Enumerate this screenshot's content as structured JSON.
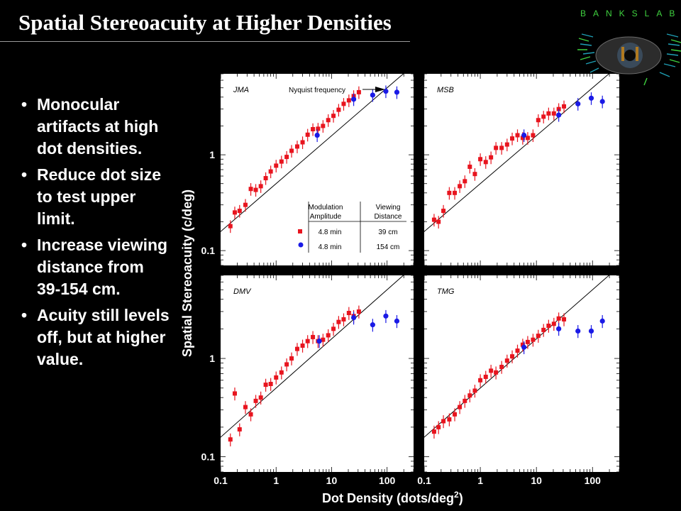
{
  "slide": {
    "title": "Spatial Stereoacuity at Higher Densities",
    "logo_text": "BANKSLAB",
    "bullets": [
      "Monocular artifacts at high dot densities.",
      "Reduce dot size to test upper limit.",
      "Increase viewing distance from 39-154 cm.",
      "Acuity still levels off, but at higher value."
    ]
  },
  "colors": {
    "background": "#000000",
    "panel": "#ffffff",
    "red_series": "#e8141e",
    "blue_series": "#1a1ae6",
    "logo_green": "#3fd23f"
  },
  "chart_data": {
    "type": "scatter",
    "xlabel": "Dot Density (dots/deg²)",
    "ylabel": "Spatial Stereoacuity (c/deg)",
    "x_scale": "log",
    "y_scale": "log",
    "xlim": [
      0.1,
      300
    ],
    "ylim": [
      0.07,
      7
    ],
    "x_ticks": [
      "0.1",
      "1",
      "10",
      "100"
    ],
    "y_ticks": [
      "0.1",
      "1"
    ],
    "reference_line": "Nyquist frequency",
    "legend": {
      "header_amp": "Modulation Amplitude",
      "header_dist": "Viewing Distance",
      "rows": [
        {
          "marker": "square",
          "color": "#e8141e",
          "amplitude": "4.8 min",
          "distance": "39 cm"
        },
        {
          "marker": "circle",
          "color": "#1a1ae6",
          "amplitude": "4.8 min",
          "distance": "154 cm"
        }
      ]
    },
    "panels": [
      {
        "name": "JMA",
        "red": [
          [
            0.15,
            0.18
          ],
          [
            0.18,
            0.25
          ],
          [
            0.22,
            0.26
          ],
          [
            0.28,
            0.3
          ],
          [
            0.35,
            0.44
          ],
          [
            0.43,
            0.43
          ],
          [
            0.53,
            0.47
          ],
          [
            0.65,
            0.57
          ],
          [
            0.8,
            0.67
          ],
          [
            1.0,
            0.77
          ],
          [
            1.25,
            0.85
          ],
          [
            1.55,
            0.95
          ],
          [
            1.9,
            1.1
          ],
          [
            2.4,
            1.22
          ],
          [
            3.0,
            1.35
          ],
          [
            3.7,
            1.62
          ],
          [
            4.6,
            1.85
          ],
          [
            5.7,
            1.87
          ],
          [
            7.0,
            2.0
          ],
          [
            8.7,
            2.3
          ],
          [
            10.8,
            2.55
          ],
          [
            13.4,
            2.95
          ],
          [
            16.5,
            3.4
          ],
          [
            20.5,
            3.7
          ],
          [
            25,
            4.1
          ],
          [
            31,
            4.5
          ]
        ],
        "blue": [
          [
            5.5,
            1.6
          ],
          [
            25,
            3.8
          ],
          [
            55,
            4.2
          ],
          [
            95,
            4.6
          ],
          [
            150,
            4.5
          ]
        ]
      },
      {
        "name": "MSB",
        "red": [
          [
            0.15,
            0.21
          ],
          [
            0.18,
            0.2
          ],
          [
            0.22,
            0.26
          ],
          [
            0.28,
            0.4
          ],
          [
            0.35,
            0.4
          ],
          [
            0.43,
            0.47
          ],
          [
            0.53,
            0.53
          ],
          [
            0.65,
            0.75
          ],
          [
            0.8,
            0.63
          ],
          [
            1.0,
            0.9
          ],
          [
            1.25,
            0.84
          ],
          [
            1.55,
            0.94
          ],
          [
            1.9,
            1.18
          ],
          [
            2.4,
            1.18
          ],
          [
            3.0,
            1.28
          ],
          [
            3.7,
            1.48
          ],
          [
            4.6,
            1.6
          ],
          [
            5.7,
            1.5
          ],
          [
            7.0,
            1.5
          ],
          [
            8.7,
            1.6
          ],
          [
            10.8,
            2.3
          ],
          [
            13.4,
            2.5
          ],
          [
            16.5,
            2.7
          ],
          [
            20.5,
            2.7
          ],
          [
            25,
            3.0
          ],
          [
            31,
            3.2
          ]
        ],
        "blue": [
          [
            6,
            1.6
          ],
          [
            25,
            2.6
          ],
          [
            55,
            3.4
          ],
          [
            95,
            3.9
          ],
          [
            150,
            3.6
          ]
        ]
      },
      {
        "name": "DMV",
        "red": [
          [
            0.15,
            0.15
          ],
          [
            0.18,
            0.44
          ],
          [
            0.22,
            0.19
          ],
          [
            0.28,
            0.32
          ],
          [
            0.35,
            0.27
          ],
          [
            0.43,
            0.37
          ],
          [
            0.53,
            0.4
          ],
          [
            0.65,
            0.54
          ],
          [
            0.8,
            0.55
          ],
          [
            1.0,
            0.64
          ],
          [
            1.25,
            0.72
          ],
          [
            1.55,
            0.87
          ],
          [
            1.9,
            1.0
          ],
          [
            2.4,
            1.25
          ],
          [
            3.0,
            1.35
          ],
          [
            3.7,
            1.5
          ],
          [
            4.6,
            1.65
          ],
          [
            5.7,
            1.5
          ],
          [
            7.0,
            1.55
          ],
          [
            8.7,
            1.72
          ],
          [
            10.8,
            2.0
          ],
          [
            13.4,
            2.35
          ],
          [
            16.5,
            2.5
          ],
          [
            20.5,
            2.9
          ],
          [
            25,
            2.7
          ],
          [
            31,
            3.0
          ]
        ],
        "blue": [
          [
            6,
            1.5
          ],
          [
            25,
            2.6
          ],
          [
            55,
            2.2
          ],
          [
            95,
            2.7
          ],
          [
            150,
            2.4
          ]
        ]
      },
      {
        "name": "TMG",
        "red": [
          [
            0.15,
            0.18
          ],
          [
            0.18,
            0.2
          ],
          [
            0.22,
            0.23
          ],
          [
            0.28,
            0.24
          ],
          [
            0.35,
            0.27
          ],
          [
            0.43,
            0.32
          ],
          [
            0.53,
            0.37
          ],
          [
            0.65,
            0.42
          ],
          [
            0.8,
            0.47
          ],
          [
            1.0,
            0.6
          ],
          [
            1.25,
            0.65
          ],
          [
            1.55,
            0.75
          ],
          [
            1.9,
            0.72
          ],
          [
            2.4,
            0.82
          ],
          [
            3.0,
            0.95
          ],
          [
            3.7,
            1.05
          ],
          [
            4.6,
            1.2
          ],
          [
            5.7,
            1.38
          ],
          [
            7.0,
            1.47
          ],
          [
            8.7,
            1.55
          ],
          [
            10.8,
            1.7
          ],
          [
            13.4,
            1.95
          ],
          [
            16.5,
            2.15
          ],
          [
            20.5,
            2.25
          ],
          [
            25,
            2.55
          ],
          [
            31,
            2.5
          ]
        ],
        "blue": [
          [
            6,
            1.3
          ],
          [
            25,
            2.0
          ],
          [
            55,
            1.9
          ],
          [
            95,
            1.9
          ],
          [
            150,
            2.4
          ]
        ]
      }
    ]
  }
}
